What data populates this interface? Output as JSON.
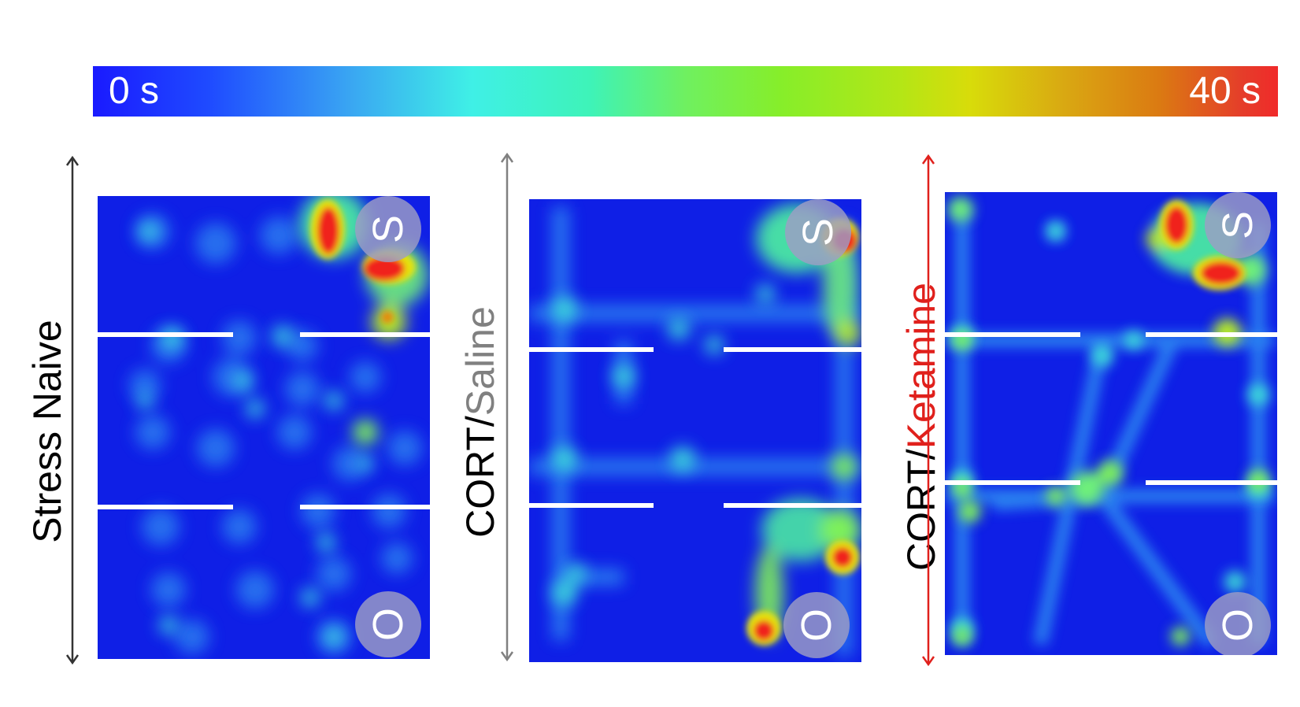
{
  "color_scale": {
    "min_label": "0 s",
    "max_label": "40 s",
    "colors": [
      "#1a1aff",
      "#3ff0e6",
      "#6ff060",
      "#d8dc0a",
      "#db7a12",
      "#f02a2a"
    ]
  },
  "panels": [
    {
      "title_parts": [
        "Stress Naive"
      ],
      "title_colors": [
        "#000000"
      ],
      "arrow_color": "#333333",
      "start_marker": "S",
      "goal_marker": "O"
    },
    {
      "title_parts": [
        "CORT/",
        "Saline"
      ],
      "title_colors": [
        "#000000",
        "#808080"
      ],
      "arrow_color": "#808080",
      "start_marker": "S",
      "goal_marker": "O"
    },
    {
      "title_parts": [
        "CORT/",
        "Ketamine"
      ],
      "title_colors": [
        "#000000",
        "#e0201c"
      ],
      "arrow_color": "#e0201c",
      "start_marker": "S",
      "goal_marker": "O"
    }
  ]
}
